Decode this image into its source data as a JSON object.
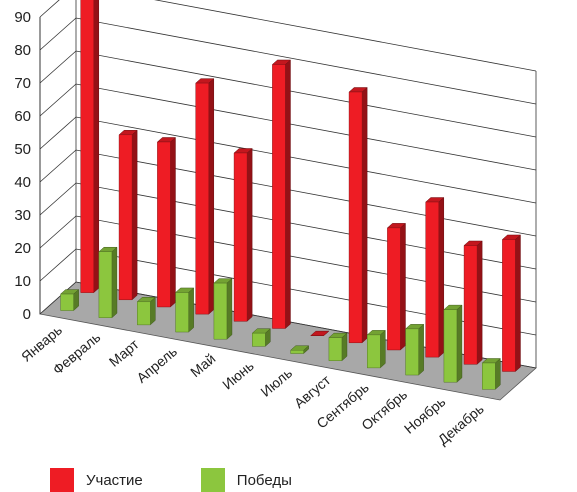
{
  "chart_data": {
    "type": "bar",
    "categories": [
      "Январь",
      "Февраль",
      "Март",
      "Апрель",
      "Май",
      "Июнь",
      "Июль",
      "Август",
      "Сентябрь",
      "Октябрь",
      "Ноябрь",
      "Декабрь"
    ],
    "series": [
      {
        "name": "Участие",
        "values": [
          90,
          50,
          50,
          70,
          51,
          80,
          0,
          76,
          37,
          47,
          36,
          40
        ],
        "color": "#ee1c24"
      },
      {
        "name": "Победы",
        "values": [
          5,
          20,
          7,
          12,
          17,
          4,
          1,
          7,
          10,
          14,
          22,
          8
        ],
        "color": "#8cc63e"
      }
    ],
    "yticks": [
      0,
      10,
      20,
      30,
      40,
      50,
      60,
      70,
      80,
      90
    ],
    "ylim": [
      0,
      90
    ],
    "grid": true,
    "legend_position": "bottom-left"
  }
}
